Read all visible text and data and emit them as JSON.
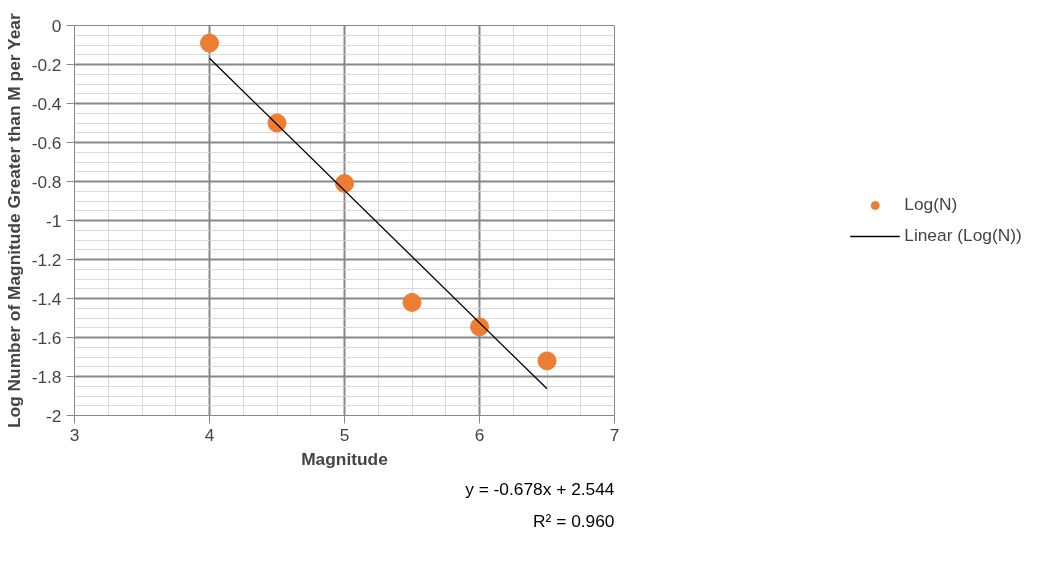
{
  "chart_data": {
    "type": "scatter",
    "xlabel": "Magnitude",
    "ylabel": "Log Number of Magnitude Greater than M per Year",
    "series": [
      {
        "name": "Log(N)",
        "color": "#ed7d31",
        "marker": "circle",
        "x": [
          4,
          4.5,
          5,
          5.5,
          6,
          6.5
        ],
        "values": [
          -0.09,
          -0.5,
          -0.81,
          -1.42,
          -1.545,
          -1.72
        ]
      },
      {
        "name": "Linear (Log(N))",
        "type": "line",
        "color": "#000000",
        "line_style": "solid",
        "x": [
          4,
          6.5
        ],
        "values": [
          -0.168,
          -1.863
        ]
      }
    ],
    "xlim": [
      3,
      7
    ],
    "xticks": [
      3,
      4,
      5,
      6,
      7
    ],
    "ylim": [
      -2,
      0
    ],
    "yticks": [
      0,
      -0.2,
      -0.4,
      -0.6,
      -0.8,
      -1,
      -1.2,
      -1.4,
      -1.6,
      -1.8,
      -2
    ],
    "grid": true,
    "legend": "right",
    "annotations": [
      "y = -0.678x + 2.544\nR² = 0.960"
    ]
  }
}
